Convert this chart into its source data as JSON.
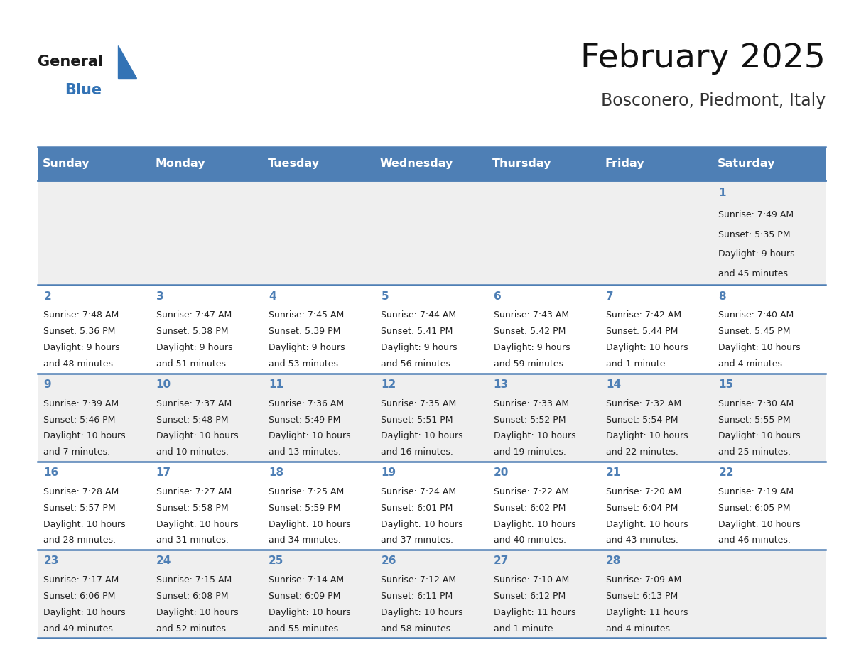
{
  "title": "February 2025",
  "subtitle": "Bosconero, Piedmont, Italy",
  "days_of_week": [
    "Sunday",
    "Monday",
    "Tuesday",
    "Wednesday",
    "Thursday",
    "Friday",
    "Saturday"
  ],
  "header_bg": "#4e7fb5",
  "header_text": "#ffffff",
  "row_bg_odd": "#efefef",
  "row_bg_even": "#ffffff",
  "cell_border_color": "#4e7fb5",
  "day_number_color": "#4e7fb5",
  "text_color": "#222222",
  "calendar_data": [
    [
      null,
      null,
      null,
      null,
      null,
      null,
      {
        "day": "1",
        "sunrise": "7:49 AM",
        "sunset": "5:35 PM",
        "daylight": "9 hours\nand 45 minutes."
      }
    ],
    [
      {
        "day": "2",
        "sunrise": "7:48 AM",
        "sunset": "5:36 PM",
        "daylight": "9 hours\nand 48 minutes."
      },
      {
        "day": "3",
        "sunrise": "7:47 AM",
        "sunset": "5:38 PM",
        "daylight": "9 hours\nand 51 minutes."
      },
      {
        "day": "4",
        "sunrise": "7:45 AM",
        "sunset": "5:39 PM",
        "daylight": "9 hours\nand 53 minutes."
      },
      {
        "day": "5",
        "sunrise": "7:44 AM",
        "sunset": "5:41 PM",
        "daylight": "9 hours\nand 56 minutes."
      },
      {
        "day": "6",
        "sunrise": "7:43 AM",
        "sunset": "5:42 PM",
        "daylight": "9 hours\nand 59 minutes."
      },
      {
        "day": "7",
        "sunrise": "7:42 AM",
        "sunset": "5:44 PM",
        "daylight": "10 hours\nand 1 minute."
      },
      {
        "day": "8",
        "sunrise": "7:40 AM",
        "sunset": "5:45 PM",
        "daylight": "10 hours\nand 4 minutes."
      }
    ],
    [
      {
        "day": "9",
        "sunrise": "7:39 AM",
        "sunset": "5:46 PM",
        "daylight": "10 hours\nand 7 minutes."
      },
      {
        "day": "10",
        "sunrise": "7:37 AM",
        "sunset": "5:48 PM",
        "daylight": "10 hours\nand 10 minutes."
      },
      {
        "day": "11",
        "sunrise": "7:36 AM",
        "sunset": "5:49 PM",
        "daylight": "10 hours\nand 13 minutes."
      },
      {
        "day": "12",
        "sunrise": "7:35 AM",
        "sunset": "5:51 PM",
        "daylight": "10 hours\nand 16 minutes."
      },
      {
        "day": "13",
        "sunrise": "7:33 AM",
        "sunset": "5:52 PM",
        "daylight": "10 hours\nand 19 minutes."
      },
      {
        "day": "14",
        "sunrise": "7:32 AM",
        "sunset": "5:54 PM",
        "daylight": "10 hours\nand 22 minutes."
      },
      {
        "day": "15",
        "sunrise": "7:30 AM",
        "sunset": "5:55 PM",
        "daylight": "10 hours\nand 25 minutes."
      }
    ],
    [
      {
        "day": "16",
        "sunrise": "7:28 AM",
        "sunset": "5:57 PM",
        "daylight": "10 hours\nand 28 minutes."
      },
      {
        "day": "17",
        "sunrise": "7:27 AM",
        "sunset": "5:58 PM",
        "daylight": "10 hours\nand 31 minutes."
      },
      {
        "day": "18",
        "sunrise": "7:25 AM",
        "sunset": "5:59 PM",
        "daylight": "10 hours\nand 34 minutes."
      },
      {
        "day": "19",
        "sunrise": "7:24 AM",
        "sunset": "6:01 PM",
        "daylight": "10 hours\nand 37 minutes."
      },
      {
        "day": "20",
        "sunrise": "7:22 AM",
        "sunset": "6:02 PM",
        "daylight": "10 hours\nand 40 minutes."
      },
      {
        "day": "21",
        "sunrise": "7:20 AM",
        "sunset": "6:04 PM",
        "daylight": "10 hours\nand 43 minutes."
      },
      {
        "day": "22",
        "sunrise": "7:19 AM",
        "sunset": "6:05 PM",
        "daylight": "10 hours\nand 46 minutes."
      }
    ],
    [
      {
        "day": "23",
        "sunrise": "7:17 AM",
        "sunset": "6:06 PM",
        "daylight": "10 hours\nand 49 minutes."
      },
      {
        "day": "24",
        "sunrise": "7:15 AM",
        "sunset": "6:08 PM",
        "daylight": "10 hours\nand 52 minutes."
      },
      {
        "day": "25",
        "sunrise": "7:14 AM",
        "sunset": "6:09 PM",
        "daylight": "10 hours\nand 55 minutes."
      },
      {
        "day": "26",
        "sunrise": "7:12 AM",
        "sunset": "6:11 PM",
        "daylight": "10 hours\nand 58 minutes."
      },
      {
        "day": "27",
        "sunrise": "7:10 AM",
        "sunset": "6:12 PM",
        "daylight": "11 hours\nand 1 minute."
      },
      {
        "day": "28",
        "sunrise": "7:09 AM",
        "sunset": "6:13 PM",
        "daylight": "11 hours\nand 4 minutes."
      },
      null
    ]
  ],
  "fig_width": 11.88,
  "fig_height": 9.18,
  "logo_general_color": "#1a1a1a",
  "logo_blue_color": "#3373b5",
  "logo_triangle_color": "#3373b5",
  "title_color": "#111111",
  "subtitle_color": "#333333"
}
